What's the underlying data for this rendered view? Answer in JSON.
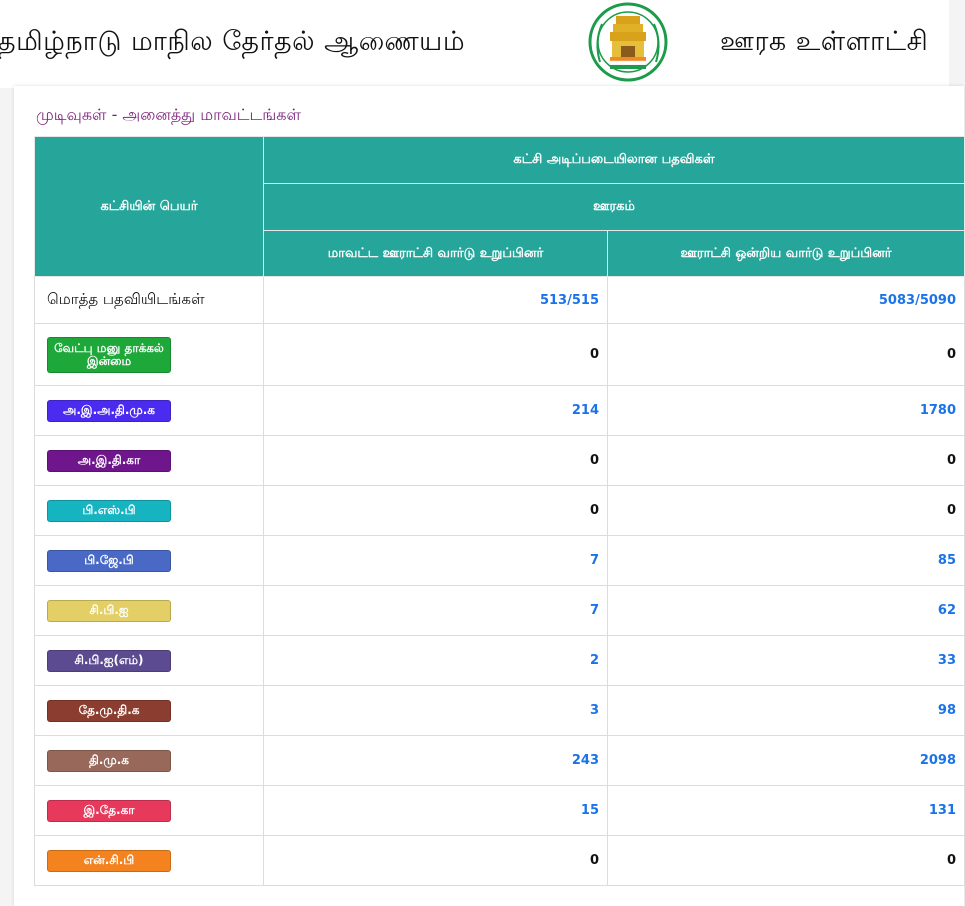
{
  "header": {
    "title_left": "தமிழ்நாடு மாநில தேர்தல் ஆணையம்",
    "title_right": "ஊரக உள்ளாட்சி",
    "emblem_icon": "tamil-nadu-emblem"
  },
  "subtitle": "முடிவுகள் - அனைத்து மாவட்டங்கள்",
  "table": {
    "col_party": "கட்சியின் பெயர்",
    "col_group": "கட்சி அடிப்படையிலான பதவிகள்",
    "col_rural": "ஊரகம்",
    "col_district": "மாவட்ட ஊராட்சி வார்டு உறுப்பினர்",
    "col_union": "ஊராட்சி ஒன்றிய வார்டு உறுப்பினர்",
    "total_label": "மொத்த பதவியிடங்கள்",
    "total_district": "513/515",
    "total_union": "5083/5090",
    "rows": [
      {
        "party": "வேட்பு மனு தாக்கல் இன்மை",
        "district": "0",
        "union": "0",
        "color": "#1ea83a"
      },
      {
        "party": "அ.இ.அ.தி.மு.க",
        "district": "214",
        "union": "1780",
        "color": "#4b2bf0"
      },
      {
        "party": "அ.இ.தி.கா",
        "district": "0",
        "union": "0",
        "color": "#6f168c"
      },
      {
        "party": "பி.எஸ்.பி",
        "district": "0",
        "union": "0",
        "color": "#16b3c1"
      },
      {
        "party": "பி.ஜே.பி",
        "district": "7",
        "union": "85",
        "color": "#4a69c6"
      },
      {
        "party": "சி.பி.ஐ",
        "district": "7",
        "union": "62",
        "color": "#e3cf66"
      },
      {
        "party": "சி.பி.ஐ(எம்)",
        "district": "2",
        "union": "33",
        "color": "#5d4b91"
      },
      {
        "party": "தே.மு.தி.க",
        "district": "3",
        "union": "98",
        "color": "#8b3e30"
      },
      {
        "party": "தி.மு.க",
        "district": "243",
        "union": "2098",
        "color": "#98695a"
      },
      {
        "party": "இ.தே.கா",
        "district": "15",
        "union": "131",
        "color": "#e6395c"
      },
      {
        "party": "என்.சி.பி",
        "district": "0",
        "union": "0",
        "color": "#f4831f"
      }
    ]
  }
}
